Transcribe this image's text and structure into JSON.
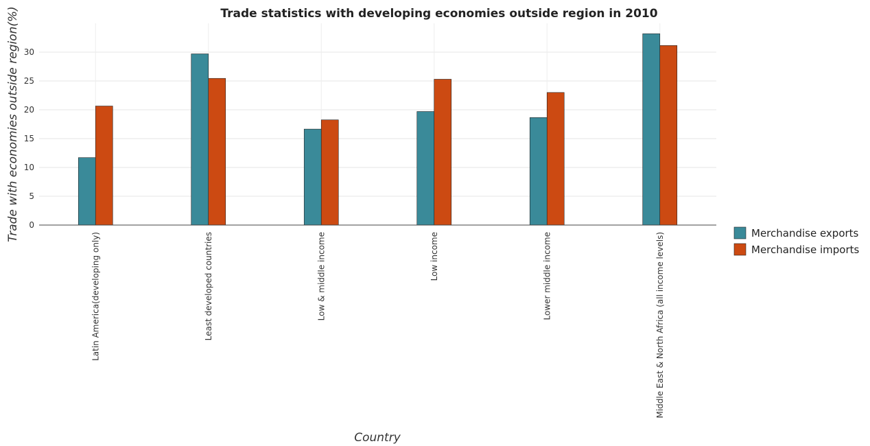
{
  "chart_data": {
    "type": "bar",
    "title": "Trade statistics with developing economies outside region in 2010",
    "xlabel": "Country",
    "ylabel": "Trade with economies outside region(%)",
    "categories": [
      "Latin America(developing only)",
      "Least developed countries",
      "Low & middle income",
      "Low income",
      "Lower middle income",
      "Middle East & North Africa (all income levels)"
    ],
    "series": [
      {
        "name": "Merchandise exports",
        "color": "#3a8a99",
        "values": [
          11.7,
          29.7,
          16.65,
          19.7,
          18.65,
          33.2
        ]
      },
      {
        "name": "Merchandise imports",
        "color": "#cc4a12",
        "values": [
          20.65,
          25.45,
          18.25,
          25.3,
          23.0,
          31.15
        ]
      }
    ],
    "yticks": [
      0,
      5,
      10,
      15,
      20,
      25,
      30
    ],
    "ylim": [
      0,
      35
    ],
    "grid": true,
    "legend_position": "right"
  }
}
